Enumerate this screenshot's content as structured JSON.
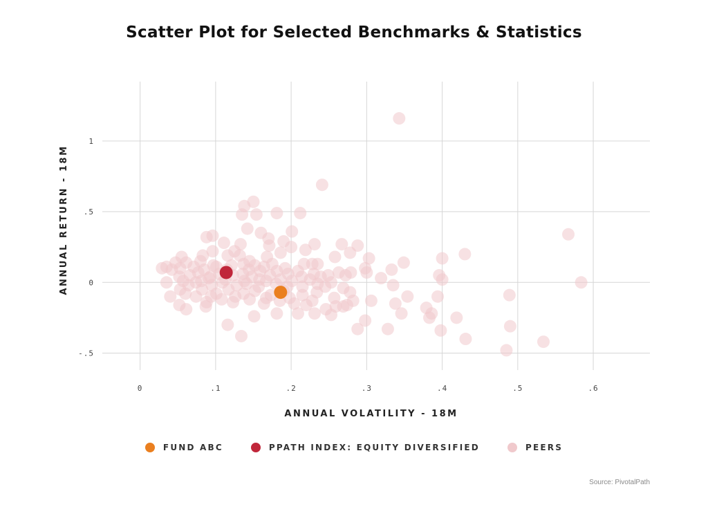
{
  "chart_data": {
    "type": "scatter",
    "title": "Scatter Plot for Selected Benchmarks & Statistics",
    "xlabel": "ANNUAL VOLATILITY - 18M",
    "ylabel": "ANNUAL RETURN - 18M",
    "xlim": [
      -0.05,
      0.675
    ],
    "ylim": [
      -0.62,
      1.42
    ],
    "x_ticks": [
      0,
      0.1,
      0.2,
      0.3,
      0.4,
      0.5,
      0.6
    ],
    "x_tick_labels": [
      "0",
      ".1",
      ".2",
      ".3",
      ".4",
      ".5",
      ".6"
    ],
    "y_ticks": [
      1,
      0.5,
      0,
      -0.5
    ],
    "y_tick_labels": [
      "1",
      ".5",
      "0",
      "-.5"
    ],
    "grid": true,
    "legend_position": "bottom",
    "series": [
      {
        "name": "PEERS",
        "color": "#f0c9cc",
        "points": [
          [
            0.343,
            1.16
          ],
          [
            0.241,
            0.69
          ],
          [
            0.15,
            0.57
          ],
          [
            0.138,
            0.54
          ],
          [
            0.181,
            0.49
          ],
          [
            0.212,
            0.49
          ],
          [
            0.135,
            0.48
          ],
          [
            0.154,
            0.48
          ],
          [
            0.142,
            0.38
          ],
          [
            0.201,
            0.36
          ],
          [
            0.16,
            0.35
          ],
          [
            0.567,
            0.34
          ],
          [
            0.096,
            0.33
          ],
          [
            0.088,
            0.32
          ],
          [
            0.17,
            0.31
          ],
          [
            0.19,
            0.29
          ],
          [
            0.111,
            0.28
          ],
          [
            0.133,
            0.27
          ],
          [
            0.267,
            0.27
          ],
          [
            0.231,
            0.27
          ],
          [
            0.288,
            0.26
          ],
          [
            0.171,
            0.26
          ],
          [
            0.2,
            0.25
          ],
          [
            0.219,
            0.23
          ],
          [
            0.125,
            0.22
          ],
          [
            0.096,
            0.22
          ],
          [
            0.186,
            0.21
          ],
          [
            0.278,
            0.21
          ],
          [
            0.43,
            0.2
          ],
          [
            0.083,
            0.19
          ],
          [
            0.116,
            0.19
          ],
          [
            0.132,
            0.19
          ],
          [
            0.055,
            0.18
          ],
          [
            0.258,
            0.18
          ],
          [
            0.168,
            0.18
          ],
          [
            0.303,
            0.17
          ],
          [
            0.4,
            0.17
          ],
          [
            0.145,
            0.15
          ],
          [
            0.08,
            0.15
          ],
          [
            0.047,
            0.14
          ],
          [
            0.061,
            0.14
          ],
          [
            0.137,
            0.13
          ],
          [
            0.175,
            0.13
          ],
          [
            0.217,
            0.13
          ],
          [
            0.235,
            0.13
          ],
          [
            0.228,
            0.13
          ],
          [
            0.349,
            0.14
          ],
          [
            0.121,
            0.12
          ],
          [
            0.152,
            0.12
          ],
          [
            0.097,
            0.12
          ],
          [
            0.035,
            0.11
          ],
          [
            0.071,
            0.11
          ],
          [
            0.101,
            0.11
          ],
          [
            0.164,
            0.11
          ],
          [
            0.192,
            0.1
          ],
          [
            0.029,
            0.1
          ],
          [
            0.053,
            0.1
          ],
          [
            0.298,
            0.1
          ],
          [
            0.333,
            0.09
          ],
          [
            0.042,
            0.09
          ],
          [
            0.085,
            0.09
          ],
          [
            0.115,
            0.09
          ],
          [
            0.144,
            0.09
          ],
          [
            0.159,
            0.08
          ],
          [
            0.181,
            0.08
          ],
          [
            0.209,
            0.08
          ],
          [
            0.263,
            0.07
          ],
          [
            0.279,
            0.07
          ],
          [
            0.3,
            0.07
          ],
          [
            0.077,
            0.07
          ],
          [
            0.105,
            0.06
          ],
          [
            0.136,
            0.06
          ],
          [
            0.196,
            0.06
          ],
          [
            0.23,
            0.06
          ],
          [
            0.066,
            0.05
          ],
          [
            0.123,
            0.05
          ],
          [
            0.172,
            0.05
          ],
          [
            0.249,
            0.05
          ],
          [
            0.272,
            0.05
          ],
          [
            0.396,
            0.05
          ],
          [
            0.052,
            0.04
          ],
          [
            0.093,
            0.04
          ],
          [
            0.148,
            0.04
          ],
          [
            0.214,
            0.04
          ],
          [
            0.239,
            0.04
          ],
          [
            0.319,
            0.03
          ],
          [
            0.091,
            0.03
          ],
          [
            0.113,
            0.02
          ],
          [
            0.158,
            0.02
          ],
          [
            0.186,
            0.02
          ],
          [
            0.225,
            0.02
          ],
          [
            0.4,
            0.02
          ],
          [
            0.057,
            0.01
          ],
          [
            0.081,
            0.01
          ],
          [
            0.138,
            0.01
          ],
          [
            0.167,
            0.01
          ],
          [
            0.201,
            0.01
          ],
          [
            0.253,
            0.0
          ],
          [
            0.584,
            0.0
          ],
          [
            0.035,
            0.0
          ],
          [
            0.074,
            0.0
          ],
          [
            0.109,
            0.0
          ],
          [
            0.141,
            -0.01
          ],
          [
            0.18,
            -0.01
          ],
          [
            0.235,
            -0.01
          ],
          [
            0.335,
            -0.02
          ],
          [
            0.064,
            -0.02
          ],
          [
            0.095,
            -0.02
          ],
          [
            0.128,
            -0.02
          ],
          [
            0.157,
            -0.03
          ],
          [
            0.195,
            -0.03
          ],
          [
            0.215,
            -0.03
          ],
          [
            0.245,
            -0.03
          ],
          [
            0.269,
            -0.04
          ],
          [
            0.053,
            -0.05
          ],
          [
            0.082,
            -0.05
          ],
          [
            0.117,
            -0.05
          ],
          [
            0.152,
            -0.06
          ],
          [
            0.19,
            -0.06
          ],
          [
            0.234,
            -0.07
          ],
          [
            0.278,
            -0.07
          ],
          [
            0.06,
            -0.08
          ],
          [
            0.101,
            -0.08
          ],
          [
            0.137,
            -0.08
          ],
          [
            0.173,
            -0.09
          ],
          [
            0.215,
            -0.09
          ],
          [
            0.489,
            -0.09
          ],
          [
            0.04,
            -0.1
          ],
          [
            0.074,
            -0.1
          ],
          [
            0.094,
            -0.1
          ],
          [
            0.126,
            -0.1
          ],
          [
            0.167,
            -0.11
          ],
          [
            0.198,
            -0.11
          ],
          [
            0.257,
            -0.11
          ],
          [
            0.354,
            -0.1
          ],
          [
            0.394,
            -0.1
          ],
          [
            0.108,
            -0.12
          ],
          [
            0.145,
            -0.12
          ],
          [
            0.185,
            -0.13
          ],
          [
            0.228,
            -0.13
          ],
          [
            0.282,
            -0.13
          ],
          [
            0.306,
            -0.13
          ],
          [
            0.088,
            -0.14
          ],
          [
            0.123,
            -0.14
          ],
          [
            0.164,
            -0.15
          ],
          [
            0.204,
            -0.15
          ],
          [
            0.338,
            -0.15
          ],
          [
            0.052,
            -0.16
          ],
          [
            0.087,
            -0.17
          ],
          [
            0.22,
            -0.16
          ],
          [
            0.259,
            -0.17
          ],
          [
            0.269,
            -0.17
          ],
          [
            0.061,
            -0.19
          ],
          [
            0.246,
            -0.19
          ],
          [
            0.379,
            -0.18
          ],
          [
            0.274,
            -0.16
          ],
          [
            0.181,
            -0.22
          ],
          [
            0.209,
            -0.22
          ],
          [
            0.231,
            -0.22
          ],
          [
            0.346,
            -0.22
          ],
          [
            0.386,
            -0.22
          ],
          [
            0.253,
            -0.23
          ],
          [
            0.151,
            -0.24
          ],
          [
            0.383,
            -0.25
          ],
          [
            0.419,
            -0.25
          ],
          [
            0.298,
            -0.27
          ],
          [
            0.116,
            -0.3
          ],
          [
            0.49,
            -0.31
          ],
          [
            0.288,
            -0.33
          ],
          [
            0.328,
            -0.33
          ],
          [
            0.398,
            -0.34
          ],
          [
            0.134,
            -0.38
          ],
          [
            0.431,
            -0.4
          ],
          [
            0.534,
            -0.42
          ],
          [
            0.485,
            -0.48
          ]
        ]
      },
      {
        "name": "PPATH INDEX: EQUITY DIVERSIFIED",
        "color": "#c0263a",
        "points": [
          [
            0.114,
            0.07
          ]
        ]
      },
      {
        "name": "FUND ABC",
        "color": "#ea7f1f",
        "points": [
          [
            0.186,
            -0.07
          ]
        ]
      }
    ],
    "legend": [
      {
        "label": "FUND ABC",
        "color": "#ea7f1f"
      },
      {
        "label": "PPATH INDEX: EQUITY DIVERSIFIED",
        "color": "#c0263a"
      },
      {
        "label": "PEERS",
        "color": "#f0c9cc"
      }
    ]
  },
  "source": "Source: PivotalPath"
}
